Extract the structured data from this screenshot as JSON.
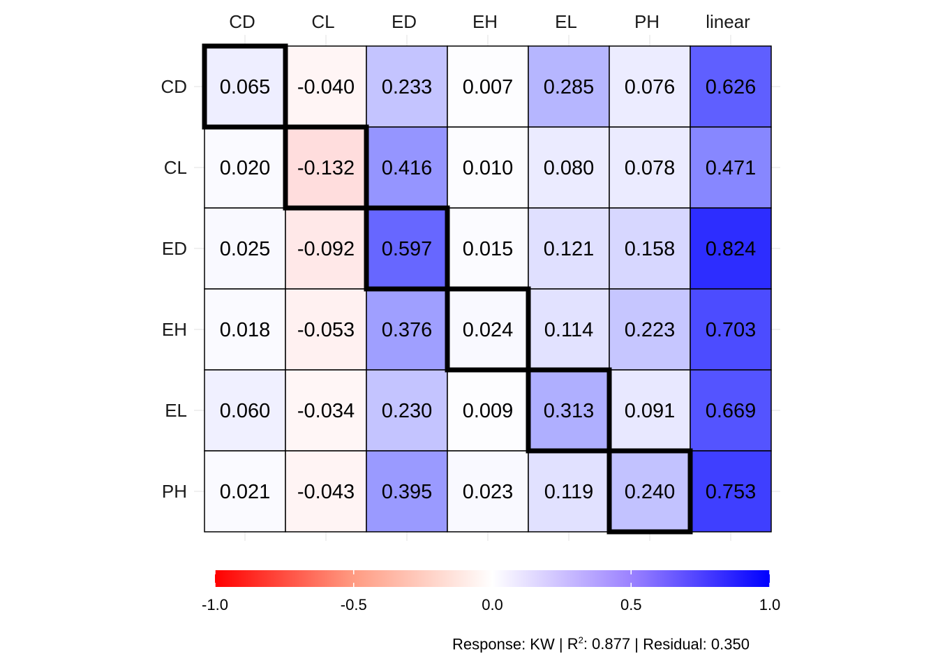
{
  "chart_data": {
    "type": "heatmap",
    "columns": [
      "CD",
      "CL",
      "ED",
      "EH",
      "EL",
      "PH",
      "linear"
    ],
    "rows": [
      "CD",
      "CL",
      "ED",
      "EH",
      "EL",
      "PH"
    ],
    "values": [
      [
        0.065,
        -0.04,
        0.233,
        0.007,
        0.285,
        0.076,
        0.626
      ],
      [
        0.02,
        -0.132,
        0.416,
        0.01,
        0.08,
        0.078,
        0.471
      ],
      [
        0.025,
        -0.092,
        0.597,
        0.015,
        0.121,
        0.158,
        0.824
      ],
      [
        0.018,
        -0.053,
        0.376,
        0.024,
        0.114,
        0.223,
        0.703
      ],
      [
        0.06,
        -0.034,
        0.23,
        0.009,
        0.313,
        0.091,
        0.669
      ],
      [
        0.021,
        -0.043,
        0.395,
        0.023,
        0.119,
        0.24,
        0.753
      ]
    ],
    "labels": [
      [
        "0.065",
        "-0.040",
        "0.233",
        "0.007",
        "0.285",
        "0.076",
        "0.626"
      ],
      [
        "0.020",
        "-0.132",
        "0.416",
        "0.010",
        "0.080",
        "0.078",
        "0.471"
      ],
      [
        "0.025",
        "-0.092",
        "0.597",
        "0.015",
        "0.121",
        "0.158",
        "0.824"
      ],
      [
        "0.018",
        "-0.053",
        "0.376",
        "0.024",
        "0.114",
        "0.223",
        "0.703"
      ],
      [
        "0.060",
        "-0.034",
        "0.230",
        "0.009",
        "0.313",
        "0.091",
        "0.669"
      ],
      [
        "0.021",
        "-0.043",
        "0.395",
        "0.023",
        "0.119",
        "0.240",
        "0.753"
      ]
    ],
    "highlighted_diagonal": true,
    "colorscale": {
      "min": -1.0,
      "mid": 0.0,
      "max": 1.0,
      "low_color": "#ff0000",
      "mid_color": "#ffffff",
      "high_color": "#0000ff",
      "ticks": [
        -1.0,
        -0.5,
        0.0,
        0.5,
        1.0
      ],
      "tick_labels": [
        "-1.0",
        "-0.5",
        "0.0",
        "0.5",
        "1.0"
      ],
      "legend_position": "bottom"
    },
    "grid": true
  },
  "caption": {
    "response": "Response: KW",
    "r2_prefix": "R",
    "r2_sup": "2",
    "r2_value": ": 0.877",
    "residual": "Residual: 0.350",
    "separator": "|"
  }
}
